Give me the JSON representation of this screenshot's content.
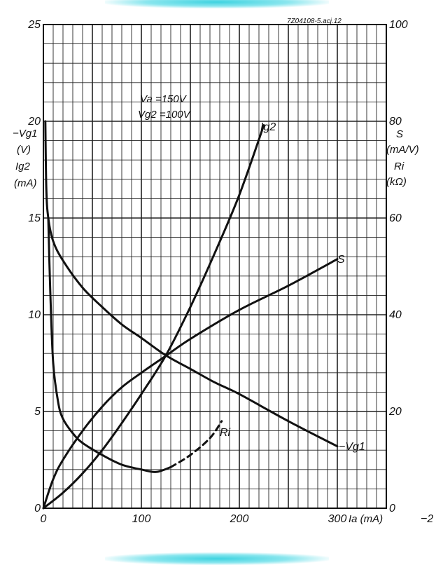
{
  "figure_code": "7Z04108-5.acj.12",
  "conditions": [
    "Va =150V",
    "Vg2 =100V"
  ],
  "left_axis_labels": [
    "−Vg1",
    "(V)",
    "Ig2",
    "(mA)"
  ],
  "right_axis_labels": [
    "S",
    "(mA/V)",
    "Ri",
    "(kΩ)"
  ],
  "bottom_axis_label": "Ia (mA)",
  "edge_fragment": "−2",
  "colors": {
    "ink": "#111111",
    "grid": "#222222",
    "glow": "#3fd3e0"
  },
  "chart_data": {
    "type": "line",
    "x": {
      "label": "Ia (mA)",
      "range": [
        0,
        350
      ],
      "ticks": [
        0,
        100,
        200,
        300
      ],
      "tick_labels": [
        "0",
        "100",
        "200",
        "300"
      ]
    },
    "y_left": {
      "label": "−Vg1 (V) / Ig2 (mA)",
      "range": [
        0,
        25
      ],
      "ticks": [
        0,
        5,
        10,
        15,
        20,
        25
      ],
      "tick_labels": [
        "0",
        "5",
        "10",
        "15",
        "20",
        "25"
      ]
    },
    "y_right": {
      "label": "S (mA/V) / Ri (kΩ)",
      "range": [
        0,
        100
      ],
      "ticks": [
        0,
        20,
        40,
        60,
        80,
        100
      ],
      "tick_labels": [
        "0",
        "20",
        "40",
        "60",
        "80",
        "100"
      ]
    },
    "grid": true,
    "series": [
      {
        "name": "−Vg1",
        "axis": "left",
        "x": [
          2,
          3,
          5,
          10,
          20,
          40,
          60,
          80,
          100,
          125,
          150,
          175,
          200,
          250,
          300
        ],
        "y": [
          20,
          16.5,
          15.0,
          13.8,
          12.8,
          11.4,
          10.4,
          9.5,
          8.8,
          7.9,
          7.2,
          6.5,
          5.9,
          4.5,
          3.2
        ]
      },
      {
        "name": "Ig2",
        "axis": "left",
        "x": [
          0,
          20,
          40,
          60,
          80,
          100,
          125,
          150,
          175,
          200,
          225
        ],
        "y": [
          0,
          0.8,
          1.8,
          3.0,
          4.4,
          5.9,
          7.9,
          10.4,
          13.2,
          16.2,
          19.8
        ]
      },
      {
        "name": "S",
        "axis": "right",
        "x": [
          0,
          10,
          20,
          40,
          60,
          80,
          100,
          125,
          150,
          200,
          250,
          300
        ],
        "y": [
          0,
          6,
          10,
          16,
          21,
          25,
          28,
          31.5,
          35,
          41,
          46,
          51.5
        ]
      },
      {
        "name": "Ri",
        "axis": "right",
        "x": [
          5,
          7,
          10,
          15,
          20,
          30,
          40,
          60,
          80,
          100,
          115,
          130
        ],
        "y": [
          60,
          45,
          30,
          22,
          18.5,
          15.5,
          13.5,
          11,
          9,
          8,
          7.5,
          8.5
        ]
      },
      {
        "name": "Ri",
        "axis": "right",
        "dashed": true,
        "x": [
          130,
          150,
          170,
          182
        ],
        "y": [
          8.5,
          11,
          14.5,
          18
        ]
      }
    ]
  }
}
